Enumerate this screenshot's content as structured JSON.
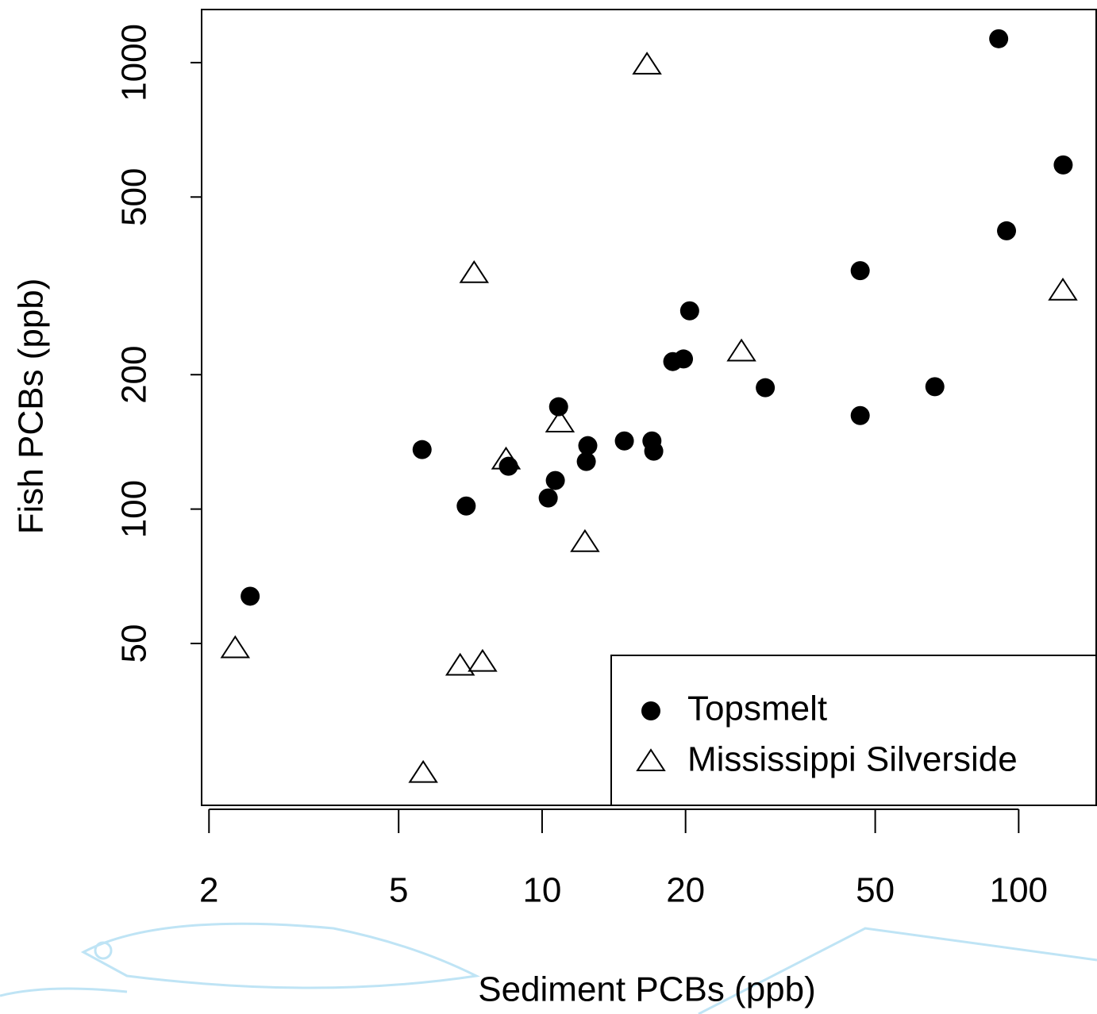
{
  "chart_data": {
    "type": "scatter",
    "xlabel": "Sediment PCBs (ppb)",
    "ylabel": "Fish PCBs (ppb)",
    "xlog": true,
    "ylog": true,
    "xlim": [
      1.93,
      146
    ],
    "ylim": [
      21.7,
      1315
    ],
    "xticks": [
      2,
      5,
      10,
      20,
      50,
      100
    ],
    "yticks": [
      50,
      100,
      200,
      500,
      1000
    ],
    "legend": "bottomright",
    "series": [
      {
        "name": "Topsmelt",
        "color": "#000000",
        "marker": "circle",
        "x": [
          2.44,
          5.6,
          6.93,
          8.5,
          10.3,
          10.66,
          10.83,
          12.47,
          12.38,
          14.88,
          17.0,
          17.15,
          18.8,
          19.8,
          20.4,
          29.4,
          46.5,
          46.5,
          66.7,
          90.8,
          94.3,
          124
        ],
        "values": [
          63.8,
          135.9,
          101.6,
          124.7,
          105.9,
          115.9,
          169.5,
          138.7,
          127.8,
          142.1,
          142.1,
          134.8,
          214,
          216.9,
          278,
          187,
          342,
          162,
          188,
          1131,
          420,
          590
        ]
      },
      {
        "name": "Mississippi Silverside",
        "color": "#000000",
        "marker": "triangle",
        "x": [
          2.27,
          5.63,
          6.73,
          7.5,
          7.2,
          8.4,
          10.9,
          12.3,
          16.6,
          26.2,
          123.8
        ],
        "values": [
          48.7,
          25.6,
          44.5,
          45.4,
          337,
          128.9,
          156,
          84.2,
          988,
          225,
          308
        ]
      }
    ]
  }
}
